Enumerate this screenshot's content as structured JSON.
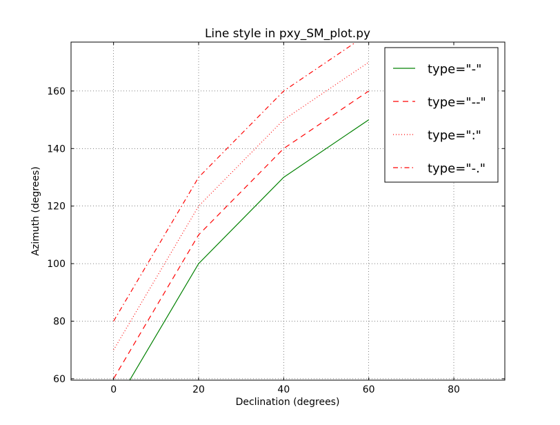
{
  "chart_data": {
    "type": "line",
    "title": "Line style in pxy_SM_plot.py",
    "xlabel": "Declination (degrees)",
    "ylabel": "Azimuth (degrees)",
    "xlim": [
      -10,
      92
    ],
    "ylim": [
      59.5,
      177
    ],
    "xticks": [
      0,
      20,
      40,
      60,
      80
    ],
    "yticks": [
      60,
      80,
      100,
      120,
      140,
      160
    ],
    "grid": true,
    "legend_position": "top-right",
    "series": [
      {
        "name": "type=\"-\"",
        "style": "-",
        "color": "#008000",
        "x": [
          0,
          20,
          40,
          60
        ],
        "y": [
          50,
          100,
          130,
          150
        ]
      },
      {
        "name": "type=\"--\"",
        "style": "--",
        "color": "#ff0000",
        "x": [
          0,
          20,
          40,
          60
        ],
        "y": [
          60,
          110,
          140,
          160
        ]
      },
      {
        "name": "type=\":\"",
        "style": ":",
        "color": "#ff0000",
        "x": [
          0,
          20,
          40,
          60
        ],
        "y": [
          70,
          120,
          150,
          170
        ]
      },
      {
        "name": "type=\"-.\"",
        "style": "-.",
        "color": "#ff0000",
        "x": [
          0,
          20,
          40,
          60
        ],
        "y": [
          80,
          130,
          160,
          180
        ]
      }
    ]
  }
}
